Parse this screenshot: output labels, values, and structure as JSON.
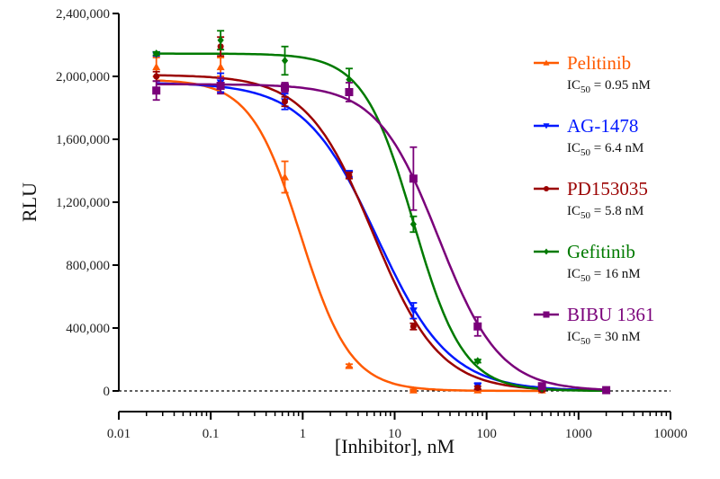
{
  "chart_data": {
    "type": "line",
    "title": "",
    "xlabel": "[Inhibitor], nM",
    "ylabel": "RLU",
    "x_scale": "log",
    "xlim": [
      0.01,
      10000
    ],
    "ylim": [
      0,
      2400000
    ],
    "x_ticks": [
      0.01,
      0.1,
      1,
      10,
      100,
      1000,
      10000
    ],
    "x_tick_labels": [
      "0.01",
      "0.1",
      "1",
      "10",
      "100",
      "1000",
      "10000"
    ],
    "y_ticks": [
      0,
      400000,
      800000,
      1200000,
      1600000,
      2000000,
      2400000
    ],
    "y_tick_labels": [
      "0",
      "400,000",
      "800,000",
      "1,200,000",
      "1,600,000",
      "2,000,000",
      "2,400,000"
    ],
    "grid": false,
    "baseline_dashed_at": 0,
    "legend_position": "right",
    "x": [
      0.0256,
      0.128,
      0.64,
      3.2,
      16,
      80,
      400,
      2000
    ],
    "series": [
      {
        "name": "Pelitinib",
        "ic50_label": "= 0.95 nM",
        "ic50": 0.95,
        "color": "#ff5a00",
        "marker": "triangle-up",
        "top": 1980000,
        "bottom": 0,
        "hill": 1.6,
        "x": [
          0.0256,
          0.128,
          0.64,
          3.2,
          16,
          80,
          400
        ],
        "values": [
          2060000,
          2060000,
          1360000,
          160000,
          5000,
          5000,
          5000
        ],
        "errors": [
          60000,
          60000,
          100000,
          10000,
          5000,
          5000,
          5000
        ]
      },
      {
        "name": "AG-1478",
        "ic50_label": "= 6.4 nM",
        "ic50": 6.4,
        "color": "#0018ff",
        "marker": "triangle-down",
        "top": 1960000,
        "bottom": 0,
        "hill": 1.1,
        "x": [
          0.0256,
          0.128,
          0.64,
          3.2,
          16,
          80,
          400,
          2000
        ],
        "values": [
          2140000,
          1960000,
          1840000,
          1380000,
          510000,
          30000,
          15000,
          5000
        ],
        "errors": [
          10000,
          60000,
          50000,
          20000,
          50000,
          20000,
          5000,
          5000
        ]
      },
      {
        "name": "PD153035",
        "ic50_label": "= 5.8 nM",
        "ic50": 5.8,
        "color": "#9b0000",
        "marker": "circle",
        "top": 2010000,
        "bottom": 0,
        "hill": 1.2,
        "x": [
          0.0256,
          0.128,
          0.64,
          3.2,
          16,
          80,
          400,
          2000
        ],
        "values": [
          2000000,
          2190000,
          1840000,
          1370000,
          410000,
          20000,
          5000,
          5000
        ],
        "errors": [
          30000,
          60000,
          30000,
          20000,
          20000,
          10000,
          5000,
          5000
        ]
      },
      {
        "name": "Gefitinib",
        "ic50_label": "= 16 nM",
        "ic50": 16,
        "color": "#007a00",
        "marker": "diamond",
        "top": 2145000,
        "bottom": 0,
        "hill": 1.6,
        "x": [
          0.0256,
          0.128,
          0.64,
          3.2,
          16,
          80,
          400,
          2000
        ],
        "values": [
          2145000,
          2230000,
          2100000,
          1980000,
          1060000,
          190000,
          15000,
          5000
        ],
        "errors": [
          10000,
          60000,
          90000,
          70000,
          50000,
          10000,
          5000,
          5000
        ]
      },
      {
        "name": "BIBU 1361",
        "ic50_label": "= 30 nM",
        "ic50": 30,
        "color": "#7a007a",
        "marker": "square",
        "top": 1950000,
        "bottom": 0,
        "hill": 1.3,
        "x": [
          0.0256,
          0.128,
          0.64,
          3.2,
          16,
          80,
          400,
          2000
        ],
        "values": [
          1910000,
          1940000,
          1930000,
          1900000,
          1350000,
          410000,
          30000,
          5000
        ],
        "errors": [
          60000,
          50000,
          30000,
          60000,
          200000,
          60000,
          10000,
          5000
        ]
      }
    ]
  }
}
